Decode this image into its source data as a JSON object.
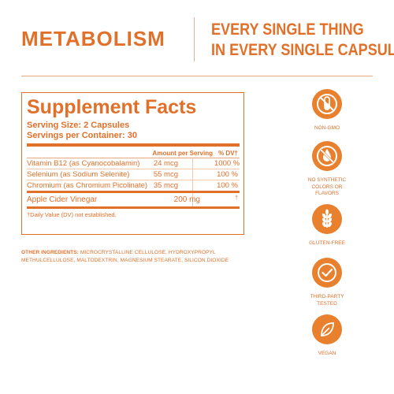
{
  "header": {
    "brand": "METABOLISM",
    "tagline_line1": "EVERY SINGLE THING",
    "tagline_line2": "IN EVERY SINGLE CAPSULE"
  },
  "facts": {
    "title": "Supplement Facts",
    "serving_size": "Serving Size: 2 Capsules",
    "servings_per_container": "Servings per Container: 30",
    "col_amount": "Amount per Serving",
    "col_dv": "% DV†",
    "rows": [
      {
        "name": "Vitamin B12 (as Cyanocobalamin)",
        "amount": "24 mcg",
        "dv": "1000 %"
      },
      {
        "name": "Selenium (as Sodium Selenite)",
        "amount": "55 mcg",
        "dv": "100 %"
      },
      {
        "name": "Chromium (as Chromium Picolinate)",
        "amount": "35 mcg",
        "dv": "100 %"
      },
      {
        "name": "Apple Cider Vinegar",
        "amount": "200 mg",
        "dv": "†"
      }
    ],
    "footnote": "†Daily Value (DV) not established."
  },
  "other_ingredients": {
    "label": "OTHER INGREDIENTS:",
    "text": "MICROCRYSTALLINE CELLULOSE, HYDROXYPROPYL METHULCELLULOSE, MALTODEXTRIN, MAGNESIUM STEARATE, SILICON DIOXIDE"
  },
  "badges": [
    {
      "icon": "test-tube-no-icon",
      "label": "NON-GMO"
    },
    {
      "icon": "drop-no-icon",
      "label": "NO SYNTHETIC COLORS OR FLAVORS"
    },
    {
      "icon": "wheat-icon",
      "label": "GLUTEN-FREE"
    },
    {
      "icon": "checkmark-icon",
      "label": "THIRD-PARTY TESTED"
    },
    {
      "icon": "leaf-icon",
      "label": "VEGAN"
    }
  ],
  "colors": {
    "accent": "#e0702a",
    "badge": "#e8802e"
  }
}
